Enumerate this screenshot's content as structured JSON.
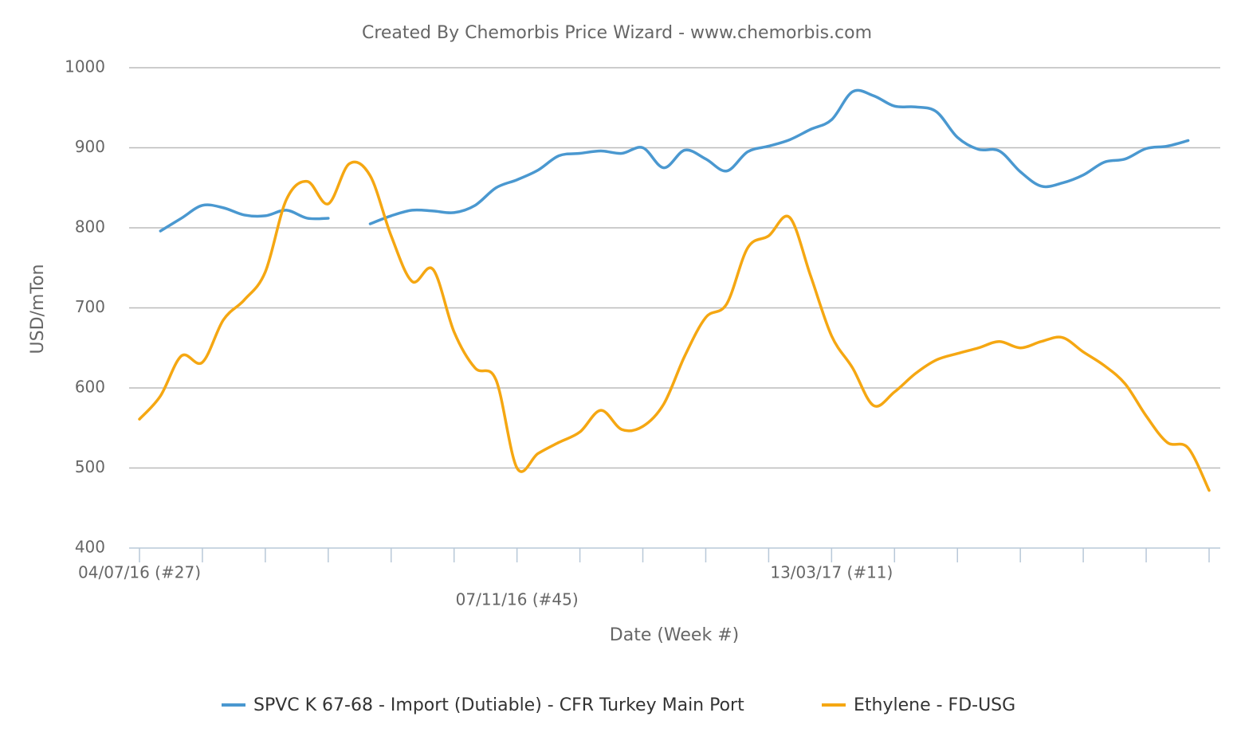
{
  "chart_data": {
    "type": "line",
    "title": "Created By Chemorbis Price Wizard - www.chemorbis.com",
    "y_label": "USD/mTon",
    "x_label": "Date (Week #)",
    "categories": [
      "04/07/16 (#27)",
      null,
      null,
      null,
      null,
      null,
      null,
      null,
      null,
      null,
      null,
      null,
      null,
      null,
      null,
      null,
      null,
      null,
      "07/11/16 (#45)",
      null,
      null,
      null,
      null,
      null,
      null,
      null,
      null,
      null,
      null,
      null,
      null,
      null,
      null,
      "13/03/17 (#11)",
      null,
      null,
      null,
      null,
      null,
      null,
      null,
      null,
      null,
      null,
      null,
      null,
      null,
      null,
      null,
      null,
      null,
      null
    ],
    "series": [
      {
        "name": "SPVC K 67-68 - Import (Dutiable) - CFR Turkey Main Port",
        "color": "#4a98d0",
        "values": [
          null,
          796,
          812,
          828,
          825,
          816,
          815,
          822,
          812,
          812,
          null,
          805,
          815,
          822,
          821,
          819,
          828,
          850,
          860,
          872,
          890,
          893,
          896,
          893,
          900,
          875,
          897,
          886,
          871,
          895,
          902,
          910,
          923,
          935,
          970,
          965,
          952,
          951,
          945,
          913,
          898,
          896,
          870,
          852,
          856,
          866,
          882,
          886,
          899,
          902,
          909,
          null
        ]
      },
      {
        "name": "Ethylene - FD-USG",
        "color": "#f5a712",
        "values": [
          561,
          590,
          640,
          632,
          685,
          710,
          745,
          835,
          858,
          830,
          880,
          865,
          790,
          733,
          748,
          670,
          625,
          610,
          500,
          518,
          532,
          545,
          572,
          548,
          552,
          580,
          640,
          688,
          705,
          775,
          790,
          813,
          740,
          665,
          625,
          578,
          595,
          618,
          635,
          643,
          650,
          658,
          650,
          658,
          663,
          645,
          628,
          605,
          565,
          532,
          525,
          472
        ]
      }
    ],
    "ylim": [
      400,
      1000
    ],
    "yticks": [
      400,
      500,
      600,
      700,
      800,
      900,
      1000
    ],
    "grid": true
  }
}
